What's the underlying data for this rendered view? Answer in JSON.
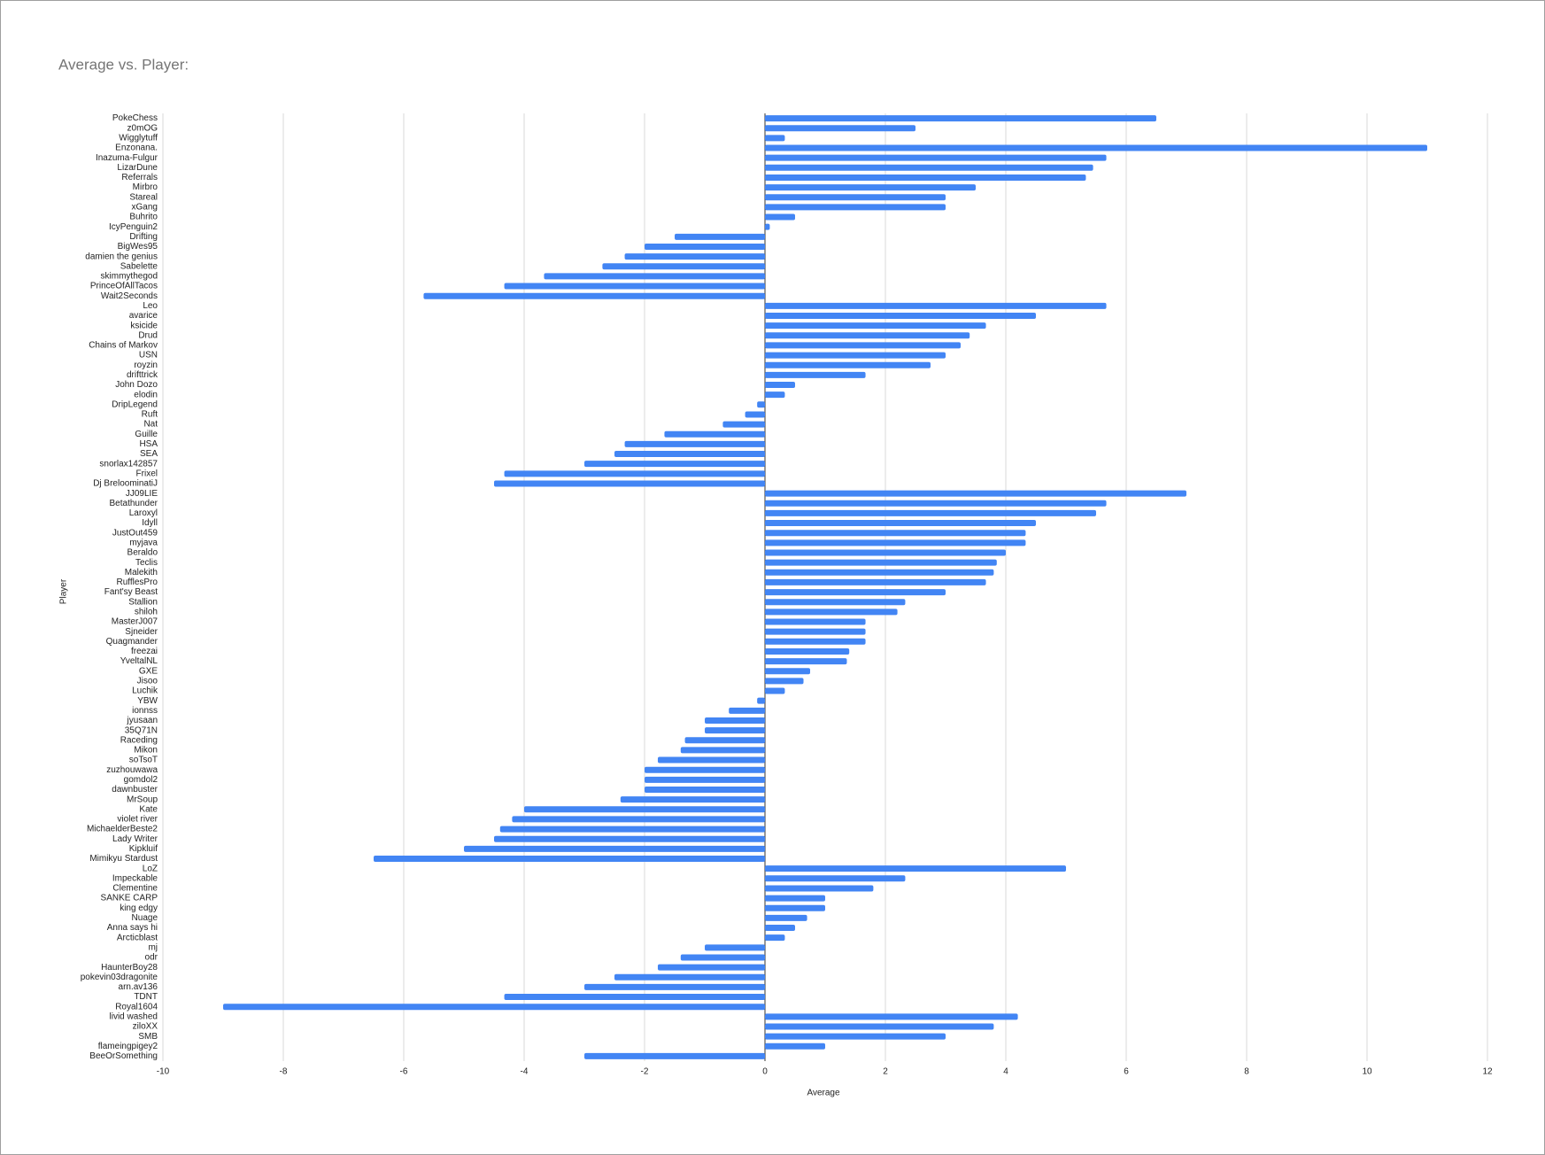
{
  "chart_data": {
    "type": "bar",
    "orientation": "horizontal",
    "title": "Average vs. Player:",
    "x_label": "Average",
    "y_label": "Player",
    "color": "#4285f4",
    "grid": true,
    "xlim": [
      -10,
      12
    ],
    "xticks": [
      -10,
      -8,
      -6,
      -4,
      -2,
      0,
      2,
      4,
      6,
      8,
      10,
      12
    ],
    "categories": [
      "PokeChess",
      "z0mOG",
      "Wigglytuff",
      "Enzonana.",
      "Inazuma-Fulgur",
      "LizarDune",
      "Referrals",
      "Mirbro",
      "Stareal",
      "xGang",
      "Buhrito",
      "IcyPenguin2",
      "Drifting",
      "BigWes95",
      "damien the genius",
      "Sabelette",
      "skimmythegod",
      "PrinceOfAllTacos",
      "Wait2Seconds",
      "Leo",
      "avarice",
      "ksicide",
      "Drud",
      "Chains of Markov",
      "USN",
      "royzin",
      "drifttrick",
      "John Dozo",
      "elodin",
      "DripLegend",
      "Ruft",
      "Nat",
      "Guille",
      "HSA",
      "SEA",
      "snorlax142857",
      "Frixel",
      "Dj BreloominatiJ",
      "JJ09LIE",
      "Betathunder",
      "Laroxyl",
      "Idyll",
      "JustOut459",
      "myjava",
      "Beraldo",
      "Teclis",
      "Malekith",
      "RufflesPro",
      "Fant'sy Beast",
      "Stallion",
      "shiloh",
      "MasterJ007",
      "Sjneider",
      "Quagmander",
      "freezai",
      "YveltalNL",
      "GXE",
      "Jisoo",
      "Luchik",
      "YBW",
      "ionnss",
      "jyusaan",
      "35Q71N",
      "Raceding",
      "Mikon",
      "soTsoT",
      "zuzhouwawa",
      "gomdol2",
      "dawnbuster",
      "MrSoup",
      "Kate",
      "violet river",
      "MichaelderBeste2",
      "Lady Writer",
      "Kipkluif",
      "Mimikyu Stardust",
      "LoZ",
      "Impeckable",
      "Clementine",
      "SANKE CARP",
      "king edgy",
      "Nuage",
      "Anna says hi",
      "Arcticblast",
      "mj",
      "odr",
      "HaunterBoy28",
      "pokevin03dragonite",
      "arn.av136",
      "TDNT",
      "Royal1604",
      "livid washed",
      "ziloXX",
      "SMB",
      "flameingpigey2",
      "BeeOrSomething"
    ],
    "values": [
      6.5,
      2.5,
      0.33,
      11,
      5.67,
      5.45,
      5.33,
      3.5,
      3,
      3,
      0.5,
      0.08,
      -1.5,
      -2,
      -2.33,
      -2.7,
      -3.67,
      -4.33,
      -5.67,
      5.67,
      4.5,
      3.67,
      3.4,
      3.25,
      3,
      2.75,
      1.67,
      0.5,
      0.33,
      -0.13,
      -0.33,
      -0.7,
      -1.67,
      -2.33,
      -2.5,
      -3,
      -4.33,
      -4.5,
      7,
      5.67,
      5.5,
      4.5,
      4.33,
      4.33,
      4,
      3.85,
      3.8,
      3.67,
      3,
      2.33,
      2.2,
      1.67,
      1.67,
      1.67,
      1.4,
      1.36,
      0.75,
      0.64,
      0.33,
      -0.13,
      -0.6,
      -1,
      -1,
      -1.33,
      -1.4,
      -1.78,
      -2,
      -2,
      -2,
      -2.4,
      -4,
      -4.2,
      -4.4,
      -4.5,
      -5,
      -6.5,
      5,
      2.33,
      1.8,
      1,
      1,
      0.7,
      0.5,
      0.33,
      -1,
      -1.4,
      -1.78,
      -2.5,
      -3,
      -4.33,
      -9,
      4.2,
      3.8,
      3,
      1,
      -3
    ]
  }
}
